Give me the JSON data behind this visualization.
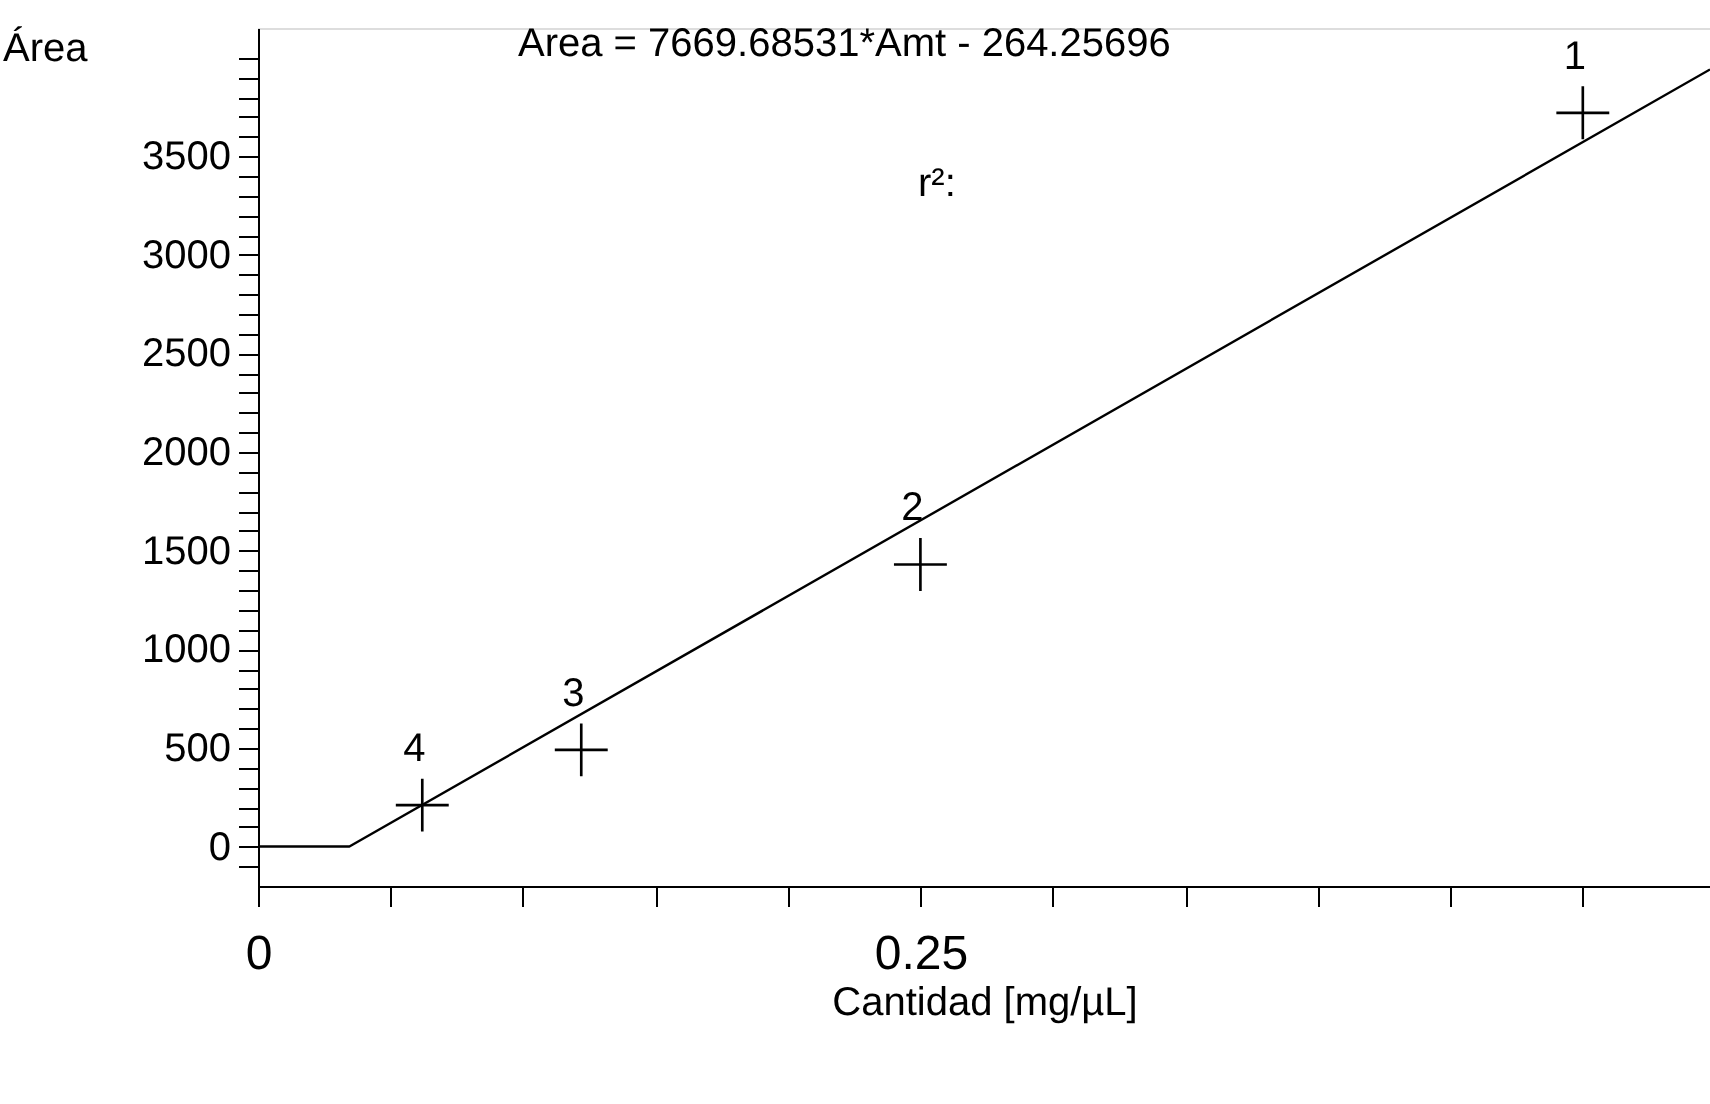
{
  "chart_data": {
    "type": "scatter",
    "xlabel": "Cantidad [mg/µL]",
    "ylabel": "Área",
    "xlim": [
      0,
      0.548
    ],
    "ylim": [
      -200,
      4150
    ],
    "xticks": [
      0,
      {
        "value": 0.05,
        "label": null
      },
      {
        "value": 0.1,
        "label": null
      },
      {
        "value": 0.15,
        "label": null
      },
      {
        "value": 0.2,
        "label": null
      },
      0.25,
      {
        "value": 0.3,
        "label": null
      },
      {
        "value": 0.35,
        "label": null
      },
      {
        "value": 0.4,
        "label": null
      },
      {
        "value": 0.45,
        "label": null
      },
      {
        "value": 0.5,
        "label": null
      }
    ],
    "yticks": [
      {
        "value": -100,
        "label": null
      },
      0,
      {
        "value": 100,
        "label": null
      },
      {
        "value": 200,
        "label": null
      },
      {
        "value": 300,
        "label": null
      },
      {
        "value": 400,
        "label": null
      },
      500,
      {
        "value": 600,
        "label": null
      },
      {
        "value": 700,
        "label": null
      },
      {
        "value": 800,
        "label": null
      },
      {
        "value": 900,
        "label": null
      },
      1000,
      {
        "value": 1100,
        "label": null
      },
      {
        "value": 1200,
        "label": null
      },
      {
        "value": 1300,
        "label": null
      },
      {
        "value": 1400,
        "label": null
      },
      1500,
      {
        "value": 1600,
        "label": null
      },
      {
        "value": 1700,
        "label": null
      },
      {
        "value": 1800,
        "label": null
      },
      {
        "value": 1900,
        "label": null
      },
      2000,
      {
        "value": 2100,
        "label": null
      },
      {
        "value": 2200,
        "label": null
      },
      {
        "value": 2300,
        "label": null
      },
      {
        "value": 2400,
        "label": null
      },
      2500,
      {
        "value": 2600,
        "label": null
      },
      {
        "value": 2700,
        "label": null
      },
      {
        "value": 2800,
        "label": null
      },
      {
        "value": 2900,
        "label": null
      },
      3000,
      {
        "value": 3100,
        "label": null
      },
      {
        "value": 3200,
        "label": null
      },
      {
        "value": 3300,
        "label": null
      },
      {
        "value": 3400,
        "label": null
      },
      3500,
      {
        "value": 3600,
        "label": null
      },
      {
        "value": 3700,
        "label": null
      },
      {
        "value": 3800,
        "label": null
      },
      {
        "value": 3900,
        "label": null
      },
      {
        "value": 4000,
        "label": null
      }
    ],
    "series": [
      {
        "color": "#000000",
        "marker": "cross",
        "x": [
          0.5,
          0.25,
          0.122,
          0.062
        ],
        "values": [
          3720,
          1430,
          490,
          210
        ]
      },
      {
        "type": "line",
        "color": "#000000",
        "line_style": "solid",
        "marker": "none",
        "x": [
          0,
          0.0345,
          0.548
        ],
        "values": [
          0,
          0,
          3940
        ]
      }
    ],
    "annotations": [
      {
        "text": "1",
        "x": 0.5,
        "y": 3720
      },
      {
        "text": "2",
        "x": 0.25,
        "y": 1430
      },
      {
        "text": "3",
        "x": 0.122,
        "y": 490
      },
      {
        "text": "4",
        "x": 0.062,
        "y": 210
      },
      "Area = 7669.68531*Amt - 264.25696",
      "r²:"
    ],
    "grid": false
  }
}
